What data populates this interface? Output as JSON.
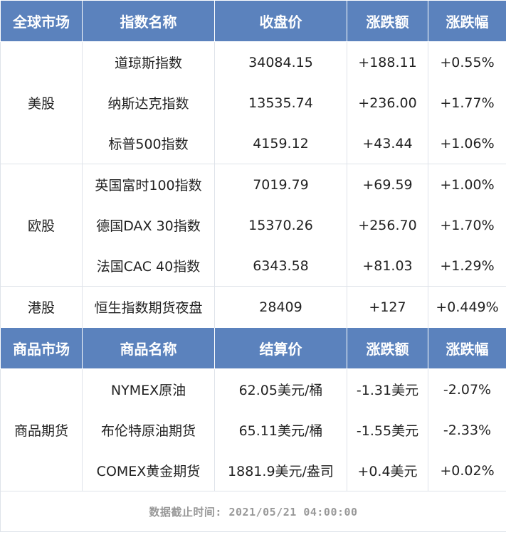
{
  "indices": {
    "headers": [
      "全球市场",
      "指数名称",
      "收盘价",
      "涨跌额",
      "涨跌幅"
    ],
    "groups": [
      {
        "market": "美股",
        "rows": [
          {
            "name": "道琼斯指数",
            "close": "34084.15",
            "change": "+188.11",
            "pct": "+0.55%"
          },
          {
            "name": "纳斯达克指数",
            "close": "13535.74",
            "change": "+236.00",
            "pct": "+1.77%"
          },
          {
            "name": "标普500指数",
            "close": "4159.12",
            "change": "+43.44",
            "pct": "+1.06%"
          }
        ]
      },
      {
        "market": "欧股",
        "rows": [
          {
            "name": "英国富时100指数",
            "close": "7019.79",
            "change": "+69.59",
            "pct": "+1.00%"
          },
          {
            "name": "德国DAX 30指数",
            "close": "15370.26",
            "change": "+256.70",
            "pct": "+1.70%"
          },
          {
            "name": "法国CAC 40指数",
            "close": "6343.58",
            "change": "+81.03",
            "pct": "+1.29%"
          }
        ]
      },
      {
        "market": "港股",
        "rows": [
          {
            "name": "恒生指数期货夜盘",
            "close": "28409",
            "change": "+127",
            "pct": "+0.449%"
          }
        ]
      }
    ]
  },
  "commodities": {
    "headers": [
      "商品市场",
      "商品名称",
      "结算价",
      "涨跌额",
      "涨跌幅"
    ],
    "groups": [
      {
        "market": "商品期货",
        "rows": [
          {
            "name": "NYMEX原油",
            "close": "62.05美元/桶",
            "change": "-1.31美元",
            "pct": "-2.07%"
          },
          {
            "name": "布伦特原油期货",
            "close": "65.11美元/桶",
            "change": "-1.55美元",
            "pct": "-2.33%"
          },
          {
            "name": "COMEX黄金期货",
            "close": "1881.9美元/盎司",
            "change": "+0.4美元",
            "pct": "+0.02%"
          }
        ]
      }
    ]
  },
  "footer": "数据截止时间: 2021/05/21 04:00:00"
}
